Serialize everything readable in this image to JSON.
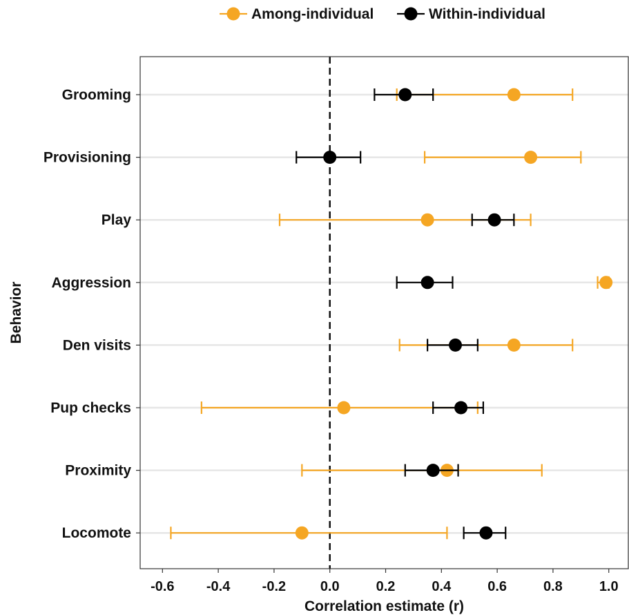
{
  "chart_data": {
    "type": "scatter",
    "subtype": "forest-plot",
    "xlabel": "Correlation estimate (r)",
    "ylabel": "Behavior",
    "xlim": [
      -0.68,
      1.07
    ],
    "xticks": [
      -0.6,
      -0.4,
      -0.2,
      0.0,
      0.2,
      0.4,
      0.6,
      0.8,
      1.0
    ],
    "xtick_labels": [
      "-0.6",
      "-0.4",
      "-0.2",
      "0.0",
      "0.2",
      "0.4",
      "0.6",
      "0.8",
      "1.0"
    ],
    "reference_line": 0.0,
    "legend_position": "top",
    "grid": "horizontal",
    "categories": [
      "Grooming",
      "Provisioning",
      "Play",
      "Aggression",
      "Den visits",
      "Pup checks",
      "Proximity",
      "Locomote"
    ],
    "series": [
      {
        "name": "Among-individual",
        "color": "#F5A623",
        "estimate": [
          0.66,
          0.72,
          0.35,
          0.99,
          0.66,
          0.05,
          0.42,
          -0.1
        ],
        "lower": [
          0.24,
          0.34,
          -0.18,
          0.96,
          0.25,
          -0.46,
          -0.1,
          -0.57
        ],
        "upper": [
          0.87,
          0.9,
          0.72,
          1.0,
          0.87,
          0.53,
          0.76,
          0.42
        ]
      },
      {
        "name": "Within-individual",
        "color": "#000000",
        "estimate": [
          0.27,
          0.0,
          0.59,
          0.35,
          0.45,
          0.47,
          0.37,
          0.56
        ],
        "lower": [
          0.16,
          -0.12,
          0.51,
          0.24,
          0.35,
          0.37,
          0.27,
          0.48
        ],
        "upper": [
          0.37,
          0.11,
          0.66,
          0.44,
          0.53,
          0.55,
          0.46,
          0.63
        ]
      }
    ]
  }
}
